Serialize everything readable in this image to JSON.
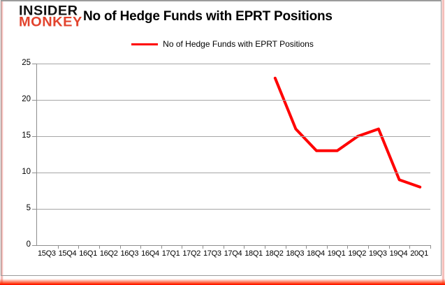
{
  "brand": {
    "name_top": "INSIDER",
    "name_bottom": "MONKEY",
    "color": "#e2432d"
  },
  "title": "No of Hedge Funds with EPRT Positions",
  "legend": {
    "label": "No of Hedge Funds with EPRT Positions",
    "color": "#ff0000"
  },
  "chart_data": {
    "type": "line",
    "title": "No of Hedge Funds with EPRT Positions",
    "categories": [
      "15Q3",
      "15Q4",
      "16Q1",
      "16Q2",
      "16Q3",
      "16Q4",
      "17Q1",
      "17Q2",
      "17Q3",
      "17Q4",
      "18Q1",
      "18Q2",
      "18Q3",
      "18Q4",
      "19Q1",
      "19Q2",
      "19Q3",
      "19Q4",
      "20Q1"
    ],
    "series": [
      {
        "name": "No of Hedge Funds with EPRT Positions",
        "color": "#ff0000",
        "values": [
          null,
          null,
          null,
          null,
          null,
          null,
          null,
          null,
          null,
          null,
          null,
          23,
          16,
          13,
          13,
          15,
          16,
          9,
          8
        ]
      }
    ],
    "ylim": [
      0,
      25
    ],
    "yticks": [
      0,
      5,
      10,
      15,
      20,
      25
    ],
    "grid": "horizontal",
    "legend_position": "top",
    "xlabel": "",
    "ylabel": ""
  }
}
